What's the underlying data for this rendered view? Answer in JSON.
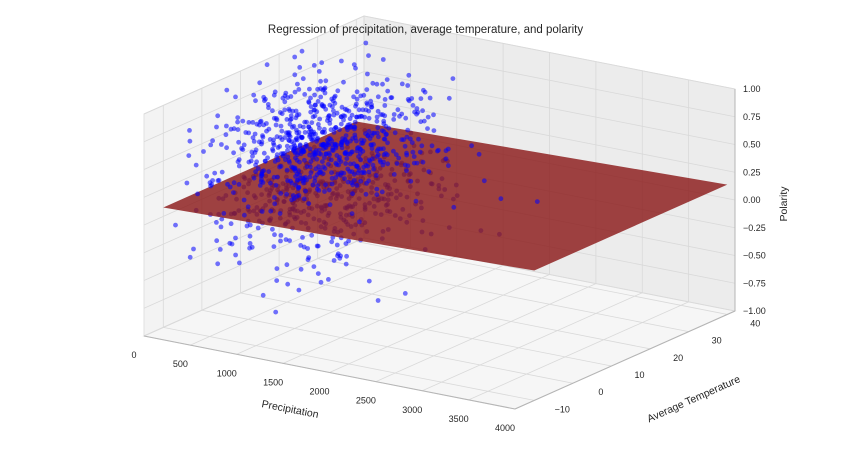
{
  "chart_data": {
    "type": "scatter",
    "projection": "3d",
    "title": "Regression of precipitation, average temperature, and polarity",
    "xlabel": "Precipitation",
    "ylabel": "Average Temperature",
    "zlabel": "Polarity",
    "xlim": [
      0,
      4000
    ],
    "ylim": [
      -15,
      42
    ],
    "zlim": [
      -1.0,
      1.0
    ],
    "x_ticks": [
      "0",
      "500",
      "1000",
      "1500",
      "2000",
      "2500",
      "3000",
      "3500",
      "4000"
    ],
    "y_ticks": [
      "−10",
      "0",
      "10",
      "20",
      "30",
      "40"
    ],
    "z_ticks": [
      "−1.00",
      "−0.75",
      "−0.50",
      "−0.25",
      "0.00",
      "0.25",
      "0.50",
      "0.75",
      "1.00"
    ],
    "grid": true,
    "series": [
      {
        "color": "#0000ff",
        "alpha": 0.55,
        "marker": "circle"
      }
    ],
    "regression_plane": {
      "color": "#8b1a1a",
      "corners": [
        {
          "precipitation": 0,
          "temperature": -10,
          "polarity": 0.08
        },
        {
          "precipitation": 4000,
          "temperature": -10,
          "polarity": 0.17
        },
        {
          "precipitation": 4000,
          "temperature": 40,
          "polarity": 0.17
        },
        {
          "precipitation": 0,
          "temperature": 40,
          "polarity": 0.08
        }
      ]
    },
    "cluster": {
      "precipitation_center": 700,
      "precipitation_spread": 450,
      "temperature_center": 15,
      "temperature_spread": 10,
      "polarity_center": 0.2,
      "polarity_spread": 0.35
    },
    "outliers": [
      {
        "x": 3200,
        "y": 10,
        "z": 0.35
      },
      {
        "x": 2800,
        "y": 5,
        "z": 0.1
      },
      {
        "x": 2300,
        "y": 10,
        "z": 0.15
      },
      {
        "x": 2600,
        "y": 15,
        "z": 0.2
      },
      {
        "x": 1900,
        "y": 0,
        "z": -0.6
      },
      {
        "x": 3000,
        "y": 5,
        "z": 0.1
      },
      {
        "x": 1800,
        "y": 20,
        "z": 0.35
      },
      {
        "x": 2100,
        "y": 5,
        "z": 0.25
      }
    ]
  }
}
